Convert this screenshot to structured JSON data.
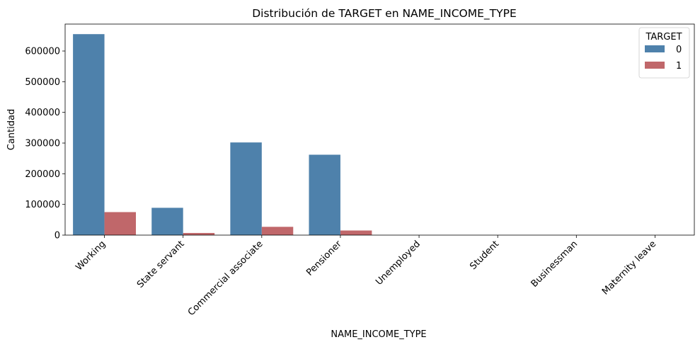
{
  "chart_data": {
    "type": "bar",
    "title": "Distribución de TARGET en NAME_INCOME_TYPE",
    "xlabel": "NAME_INCOME_TYPE",
    "ylabel": "Cantidad",
    "categories": [
      "Working",
      "State servant",
      "Commercial associate",
      "Pensioner",
      "Unemployed",
      "Student",
      "Businessman",
      "Maternity leave"
    ],
    "series": [
      {
        "name": "0",
        "color": "#4e81ab",
        "values": [
          655000,
          89000,
          302000,
          262000,
          40,
          15,
          8,
          5
        ]
      },
      {
        "name": "1",
        "color": "#c0676a",
        "values": [
          75000,
          7000,
          27000,
          15000,
          10,
          1,
          0,
          2
        ]
      }
    ],
    "yticks": [
      0,
      100000,
      200000,
      300000,
      400000,
      500000,
      600000
    ],
    "ylim": [
      0,
      687750
    ],
    "legend": {
      "title": "TARGET",
      "placement": "top-right"
    },
    "grid": false
  }
}
